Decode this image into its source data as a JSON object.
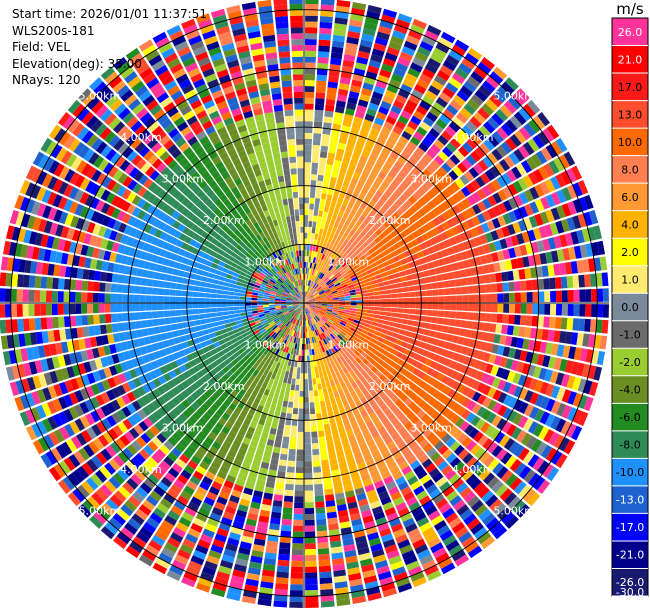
{
  "header": {
    "start_time": "Start time: 2026/01/01 11:37:51",
    "instrument": "WLS200s-181",
    "field": "Field: VEL",
    "elevation": "Elevation(deg): 35.00",
    "nrays": "NRays: 120"
  },
  "colorbar": {
    "unit": "m/s",
    "ticks": [
      "26.0",
      "21.0",
      "17.0",
      "13.0",
      "10.0",
      "8.0",
      "6.0",
      "4.0",
      "2.0",
      "1.0",
      "0.0",
      "-1.0",
      "-2.0",
      "-4.0",
      "-6.0",
      "-8.0",
      "-10.0",
      "-13.0",
      "-17.0",
      "-21.0",
      "-26.0",
      "-30.0"
    ],
    "colors": [
      "#ff3399",
      "#ff0000",
      "#ff1a1a",
      "#ff4d2e",
      "#ff6a00",
      "#ff7f50",
      "#ff9933",
      "#ffb300",
      "#ffff00",
      "#ffea70",
      "#7a8a99",
      "#6b6b6b",
      "#9acd32",
      "#6b8e23",
      "#228b22",
      "#2e8b57",
      "#1e90ff",
      "#1e62d0",
      "#0000ff",
      "#00008b",
      "#191970"
    ]
  },
  "chart_data": {
    "type": "heatmap",
    "projection": "polar PPI",
    "field": "VEL",
    "units": "m/s",
    "n_rays": 120,
    "range_ring_labels_km": [
      "1.00km",
      "2.00km",
      "3.00km",
      "4.00km",
      "5.00km"
    ],
    "range_rings_km": [
      1,
      2,
      3,
      4,
      5
    ],
    "max_range_km": 5.2,
    "vmin": -30.0,
    "vmax": 26.0,
    "dominant_flow": "negative (blue) west, positive (red) east",
    "noise_beyond_km": 3.3
  }
}
